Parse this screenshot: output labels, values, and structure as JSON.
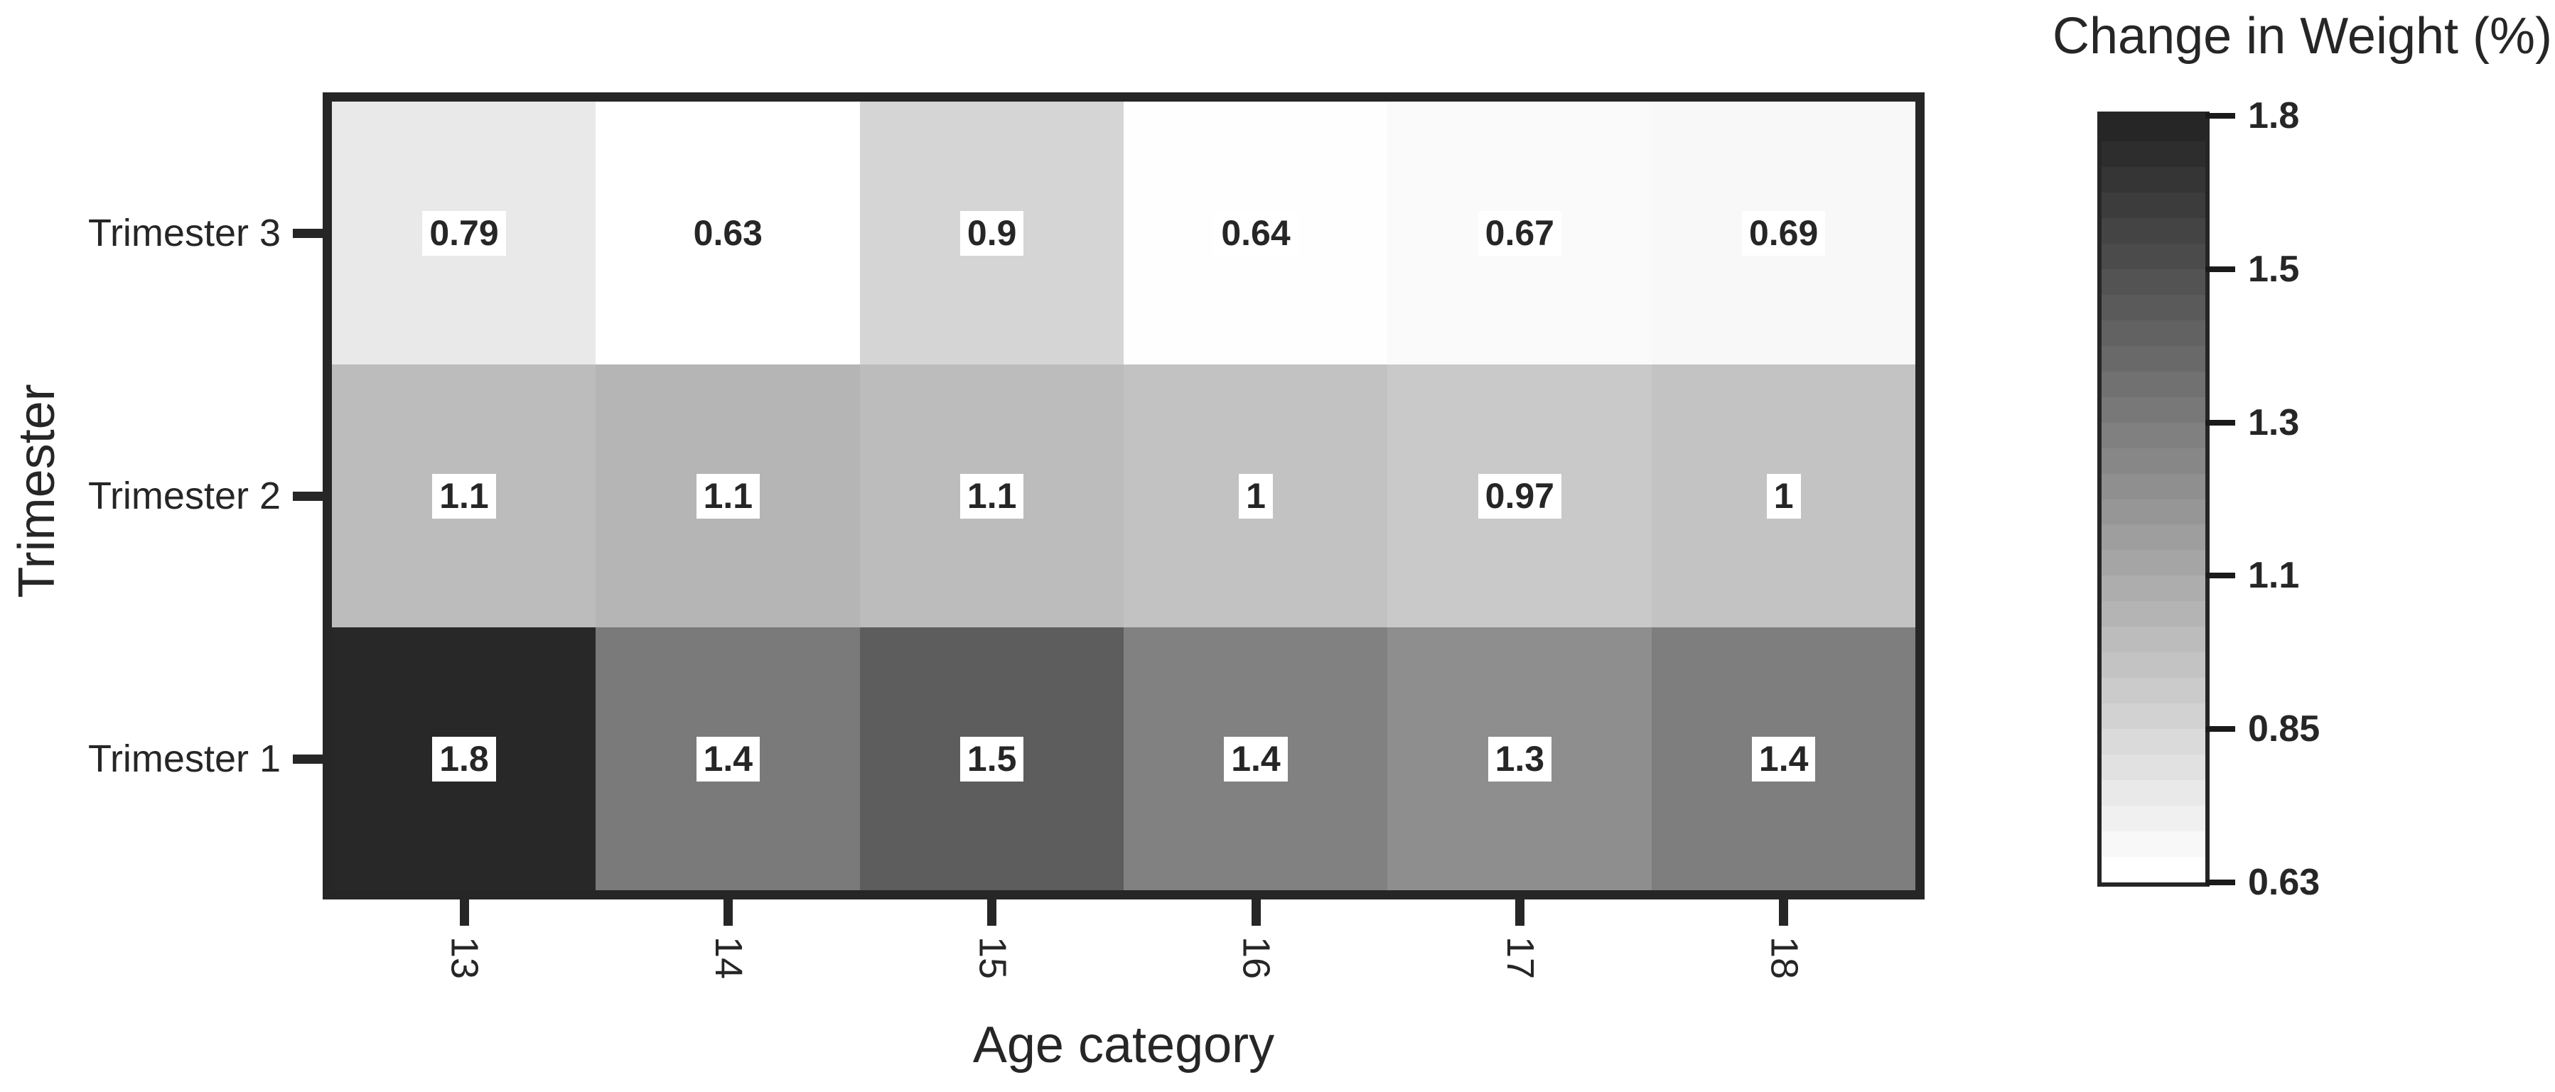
{
  "chart_data": {
    "type": "heatmap",
    "title": "",
    "xlabel": "Age category",
    "ylabel": "Trimester",
    "x_categories": [
      "13",
      "14",
      "15",
      "16",
      "17",
      "18"
    ],
    "y_categories_top_to_bottom": [
      "Trimester 3",
      "Trimester 2",
      "Trimester 1"
    ],
    "rows": [
      {
        "label": "Trimester 3",
        "values": [
          0.79,
          0.63,
          0.9,
          0.64,
          0.67,
          0.69
        ],
        "display": [
          "0.79",
          "0.63",
          "0.9",
          "0.64",
          "0.67",
          "0.69"
        ],
        "cell_colors": [
          "#e9e9e9",
          "#ffffff",
          "#d5d5d5",
          "#fefefe",
          "#fafafa",
          "#f8f8f8"
        ]
      },
      {
        "label": "Trimester 2",
        "values": [
          1.1,
          1.1,
          1.1,
          1.0,
          0.97,
          1.0
        ],
        "display": [
          "1.1",
          "1.1",
          "1.1",
          "1",
          "0.97",
          "1"
        ],
        "cell_colors": [
          "#bcbcbc",
          "#b5b5b5",
          "#bcbcbc",
          "#c2c2c2",
          "#c9c9c9",
          "#c3c3c3"
        ]
      },
      {
        "label": "Trimester 1",
        "values": [
          1.8,
          1.4,
          1.5,
          1.4,
          1.3,
          1.4
        ],
        "display": [
          "1.8",
          "1.4",
          "1.5",
          "1.4",
          "1.3",
          "1.4"
        ],
        "cell_colors": [
          "#282828",
          "#7a7a7a",
          "#5d5d5d",
          "#818181",
          "#8e8e8e",
          "#7e7e7e"
        ]
      }
    ],
    "value_range": [
      0.63,
      1.8
    ],
    "colorbar": {
      "title": "Change in Weight (%)",
      "tick_labels": [
        "1.8",
        "1.5",
        "1.3",
        "1.1",
        "0.85",
        "0.63"
      ],
      "segments": 30,
      "top_color": "#262626",
      "bottom_color": "#ffffff",
      "legend_position": "right"
    },
    "grid": "off",
    "annotation_style": {
      "text_color": "#262626",
      "box_background": "#ffffff",
      "bold": true
    },
    "axis_color": "#262626"
  }
}
